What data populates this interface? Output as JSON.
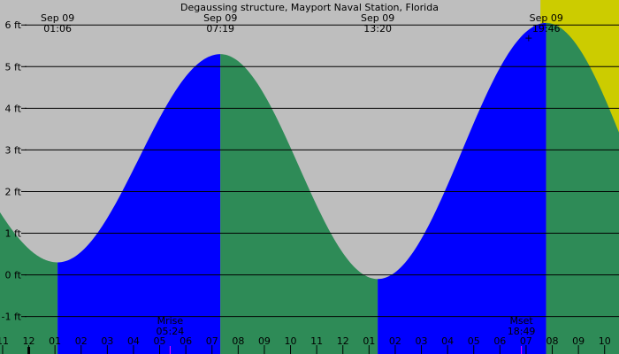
{
  "chart_data": {
    "type": "area",
    "title": "Degaussing structure, Mayport Naval Station, Florida",
    "colors": {
      "night": "#bebebe",
      "day": "#cccc00",
      "rising": "#0000ff",
      "falling": "#2e8b57",
      "gridline": "#000000",
      "moon_marker": "#ff00ff"
    },
    "ylim": [
      -1.9,
      6.6
    ],
    "y_ticks": [
      {
        "value": 6,
        "label": "6 ft"
      },
      {
        "value": 5,
        "label": "5 ft"
      },
      {
        "value": 4,
        "label": "4 ft"
      },
      {
        "value": 3,
        "label": "3 ft"
      },
      {
        "value": 2,
        "label": "2 ft"
      },
      {
        "value": 1,
        "label": "1 ft"
      },
      {
        "value": 0,
        "label": "0 ft"
      },
      {
        "value": -1,
        "label": "-1 ft"
      }
    ],
    "x_range_hours": [
      -13.1,
      10.55
    ],
    "x_ticks": [
      {
        "hour": -13,
        "label": "11"
      },
      {
        "hour": -12,
        "label": "12"
      },
      {
        "hour": -11,
        "label": "01"
      },
      {
        "hour": -10,
        "label": "02"
      },
      {
        "hour": -9,
        "label": "03"
      },
      {
        "hour": -8,
        "label": "04"
      },
      {
        "hour": -7,
        "label": "05"
      },
      {
        "hour": -6,
        "label": "06"
      },
      {
        "hour": -5,
        "label": "07"
      },
      {
        "hour": -4,
        "label": "08"
      },
      {
        "hour": -3,
        "label": "09"
      },
      {
        "hour": -2,
        "label": "10"
      },
      {
        "hour": -1,
        "label": "11"
      },
      {
        "hour": 0,
        "label": "12"
      },
      {
        "hour": 1,
        "label": "01"
      },
      {
        "hour": 2,
        "label": "02"
      },
      {
        "hour": 3,
        "label": "03"
      },
      {
        "hour": 4,
        "label": "04"
      },
      {
        "hour": 5,
        "label": "05"
      },
      {
        "hour": 6,
        "label": "06"
      },
      {
        "hour": 7,
        "label": "07"
      },
      {
        "hour": 8,
        "label": "08"
      },
      {
        "hour": 9,
        "label": "09"
      },
      {
        "hour": 10,
        "label": "10"
      }
    ],
    "daylight_hours": [
      7.55,
      19.53
    ],
    "extremes": [
      {
        "date": "Sep 09",
        "time": "01:06",
        "hour": 1.1,
        "height": 0.3,
        "kind": "low"
      },
      {
        "date": "Sep 09",
        "time": "07:19",
        "hour": 7.32,
        "height": 5.3,
        "kind": "high"
      },
      {
        "date": "Sep 09",
        "time": "13:20",
        "hour": 13.33,
        "height": -0.1,
        "kind": "low"
      },
      {
        "date": "Sep 09",
        "time": "19:46",
        "hour": 19.77,
        "height": 6.05,
        "kind": "high"
      }
    ],
    "start_height": 1.8,
    "end_height": 4.1,
    "moon_events": [
      {
        "label": "Mrise",
        "time": "05:24",
        "hour": 5.4
      },
      {
        "label": "Mset",
        "time": "18:49",
        "hour": 18.82
      }
    ],
    "markers": [
      {
        "symbol": "+",
        "hour": 19.1,
        "height": 5.7
      }
    ]
  }
}
